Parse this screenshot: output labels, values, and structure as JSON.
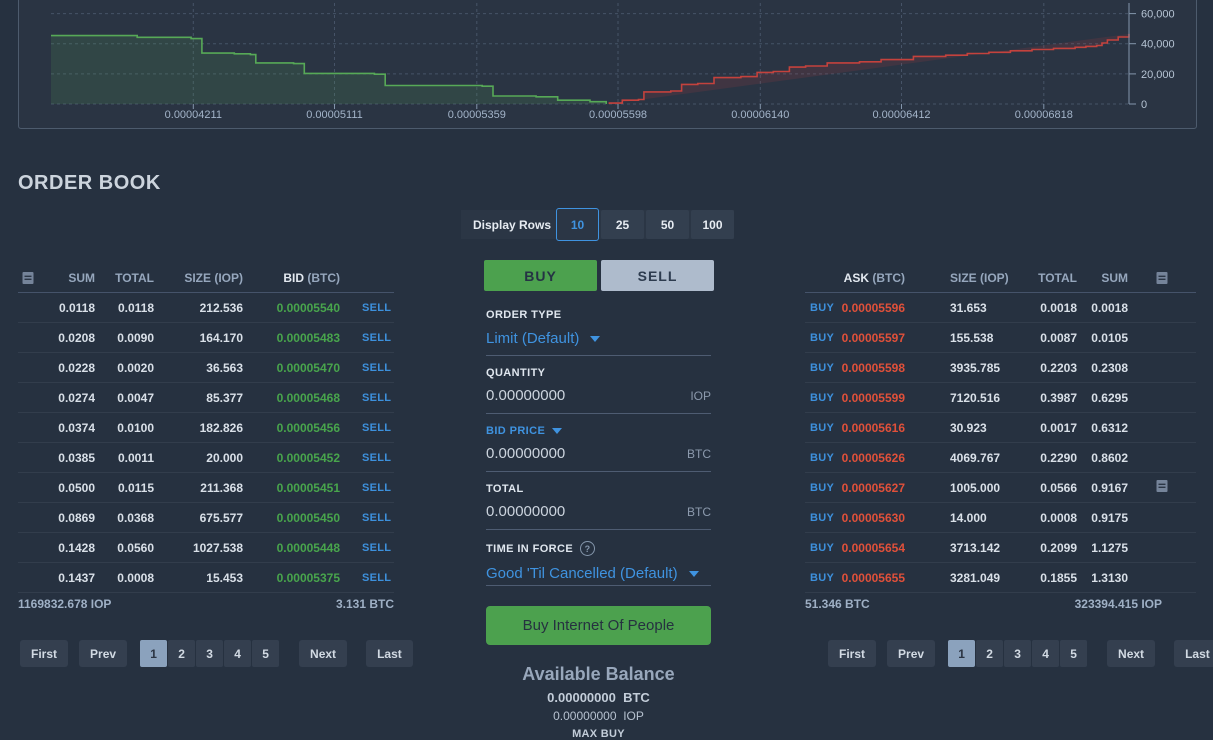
{
  "chart_data": {
    "type": "area",
    "subtype": "depth",
    "ylim": [
      0,
      60000
    ],
    "grid": true,
    "y_ticks": [
      {
        "v": 0,
        "label": "0"
      },
      {
        "v": 20000,
        "label": "20,000"
      },
      {
        "v": 40000,
        "label": "40,000"
      },
      {
        "v": 60000,
        "label": "60,000"
      }
    ],
    "x_ticks": [
      {
        "f": 0.132,
        "label": "0.00004211"
      },
      {
        "f": 0.263,
        "label": "0.00005111"
      },
      {
        "f": 0.395,
        "label": "0.00005359"
      },
      {
        "f": 0.526,
        "label": "0.00005598"
      },
      {
        "f": 0.658,
        "label": "0.00006140"
      },
      {
        "f": 0.789,
        "label": "0.00006412"
      },
      {
        "f": 0.921,
        "label": "0.00006818"
      }
    ],
    "series": [
      {
        "name": "bids",
        "line_color": "#57a957",
        "fill_color": "rgba(87,169,87,0.16)",
        "from_baseline": false,
        "points": [
          [
            0,
            45400
          ],
          [
            0.075,
            45400
          ],
          [
            0.08,
            44300
          ],
          [
            0.13,
            43400
          ],
          [
            0.14,
            33800
          ],
          [
            0.17,
            33300
          ],
          [
            0.185,
            32800
          ],
          [
            0.19,
            27300
          ],
          [
            0.225,
            26800
          ],
          [
            0.235,
            20300
          ],
          [
            0.3,
            19800
          ],
          [
            0.31,
            12300
          ],
          [
            0.4,
            11800
          ],
          [
            0.41,
            5300
          ],
          [
            0.45,
            4800
          ],
          [
            0.47,
            2500
          ],
          [
            0.5,
            1500
          ],
          [
            0.515,
            900
          ]
        ]
      },
      {
        "name": "asks",
        "line_color": "#c4423d",
        "fill_color": "rgba(196,66,61,0.14)",
        "from_baseline": true,
        "points": [
          [
            0.518,
            600
          ],
          [
            0.53,
            2500
          ],
          [
            0.545,
            3000
          ],
          [
            0.55,
            8000
          ],
          [
            0.575,
            8600
          ],
          [
            0.585,
            13000
          ],
          [
            0.6,
            13600
          ],
          [
            0.615,
            17500
          ],
          [
            0.64,
            18200
          ],
          [
            0.655,
            21000
          ],
          [
            0.67,
            21600
          ],
          [
            0.685,
            24500
          ],
          [
            0.7,
            25200
          ],
          [
            0.72,
            27300
          ],
          [
            0.75,
            28000
          ],
          [
            0.77,
            29500
          ],
          [
            0.8,
            31600
          ],
          [
            0.83,
            32400
          ],
          [
            0.85,
            33500
          ],
          [
            0.87,
            34300
          ],
          [
            0.89,
            35300
          ],
          [
            0.91,
            36200
          ],
          [
            0.93,
            36900
          ],
          [
            0.95,
            37600
          ],
          [
            0.96,
            38200
          ],
          [
            0.97,
            38800
          ],
          [
            0.975,
            40500
          ],
          [
            0.98,
            42500
          ],
          [
            0.99,
            44500
          ],
          [
            1,
            46500
          ]
        ]
      }
    ]
  },
  "order_book": {
    "title": "ORDER BOOK",
    "display_rows": {
      "label": "Display Rows",
      "options": [
        "10",
        "25",
        "50",
        "100"
      ],
      "selected": "10"
    },
    "bids": {
      "headers": {
        "sum": "SUM",
        "total": "TOTAL",
        "size": "SIZE (IOP)",
        "price_main": "BID",
        "price_unit": "(BTC)"
      },
      "action_label": "SELL",
      "rows": [
        {
          "sum": "0.0118",
          "total": "0.0118",
          "size": "212.536",
          "price": "0.00005540"
        },
        {
          "sum": "0.0208",
          "total": "0.0090",
          "size": "164.170",
          "price": "0.00005483"
        },
        {
          "sum": "0.0228",
          "total": "0.0020",
          "size": "36.563",
          "price": "0.00005470"
        },
        {
          "sum": "0.0274",
          "total": "0.0047",
          "size": "85.377",
          "price": "0.00005468"
        },
        {
          "sum": "0.0374",
          "total": "0.0100",
          "size": "182.826",
          "price": "0.00005456"
        },
        {
          "sum": "0.0385",
          "total": "0.0011",
          "size": "20.000",
          "price": "0.00005452"
        },
        {
          "sum": "0.0500",
          "total": "0.0115",
          "size": "211.368",
          "price": "0.00005451"
        },
        {
          "sum": "0.0869",
          "total": "0.0368",
          "size": "675.577",
          "price": "0.00005450"
        },
        {
          "sum": "0.1428",
          "total": "0.0560",
          "size": "1027.538",
          "price": "0.00005448"
        },
        {
          "sum": "0.1437",
          "total": "0.0008",
          "size": "15.453",
          "price": "0.00005375"
        }
      ],
      "footer_left": "1169832.678 IOP",
      "footer_right": "3.131 BTC",
      "pagination": {
        "first": "First",
        "prev": "Prev",
        "pages": [
          "1",
          "2",
          "3",
          "4",
          "5"
        ],
        "active_page": "1",
        "next": "Next",
        "last": "Last"
      }
    },
    "asks": {
      "headers": {
        "price_main": "ASK",
        "price_unit": "(BTC)",
        "size": "SIZE (IOP)",
        "total": "TOTAL",
        "sum": "SUM"
      },
      "action_label": "BUY",
      "rows": [
        {
          "price": "0.00005596",
          "size": "31.653",
          "total": "0.0018",
          "sum": "0.0018",
          "marker": false
        },
        {
          "price": "0.00005597",
          "size": "155.538",
          "total": "0.0087",
          "sum": "0.0105",
          "marker": false
        },
        {
          "price": "0.00005598",
          "size": "3935.785",
          "total": "0.2203",
          "sum": "0.2308",
          "marker": false
        },
        {
          "price": "0.00005599",
          "size": "7120.516",
          "total": "0.3987",
          "sum": "0.6295",
          "marker": false
        },
        {
          "price": "0.00005616",
          "size": "30.923",
          "total": "0.0017",
          "sum": "0.6312",
          "marker": false
        },
        {
          "price": "0.00005626",
          "size": "4069.767",
          "total": "0.2290",
          "sum": "0.8602",
          "marker": false
        },
        {
          "price": "0.00005627",
          "size": "1005.000",
          "total": "0.0566",
          "sum": "0.9167",
          "marker": true
        },
        {
          "price": "0.00005630",
          "size": "14.000",
          "total": "0.0008",
          "sum": "0.9175",
          "marker": false
        },
        {
          "price": "0.00005654",
          "size": "3713.142",
          "total": "0.2099",
          "sum": "1.1275",
          "marker": false
        },
        {
          "price": "0.00005655",
          "size": "3281.049",
          "total": "0.1855",
          "sum": "1.3130",
          "marker": false
        }
      ],
      "footer_left": "51.346 BTC",
      "footer_right": "323394.415 IOP",
      "pagination": {
        "first": "First",
        "prev": "Prev",
        "pages": [
          "1",
          "2",
          "3",
          "4",
          "5"
        ],
        "active_page": "1",
        "next": "Next",
        "last": "Last"
      }
    },
    "trade_form": {
      "tabs": {
        "buy": "BUY",
        "sell": "SELL"
      },
      "order_type": {
        "label": "ORDER TYPE",
        "value": "Limit (Default)"
      },
      "quantity": {
        "label": "QUANTITY",
        "value": "0.00000000",
        "unit": "IOP"
      },
      "bid_price": {
        "label": "BID PRICE",
        "value": "0.00000000",
        "unit": "BTC"
      },
      "total": {
        "label": "TOTAL",
        "value": "0.00000000",
        "unit": "BTC"
      },
      "time_in_force": {
        "label": "TIME IN FORCE",
        "help": "?",
        "value": "Good 'Til Cancelled (Default)"
      },
      "submit_label": "Buy Internet Of People",
      "balance": {
        "title": "Available Balance",
        "btc_value": "0.00000000",
        "btc_unit": "BTC",
        "iop_value": "0.00000000",
        "iop_unit": "IOP",
        "max_buy_label": "MAX BUY"
      }
    }
  }
}
